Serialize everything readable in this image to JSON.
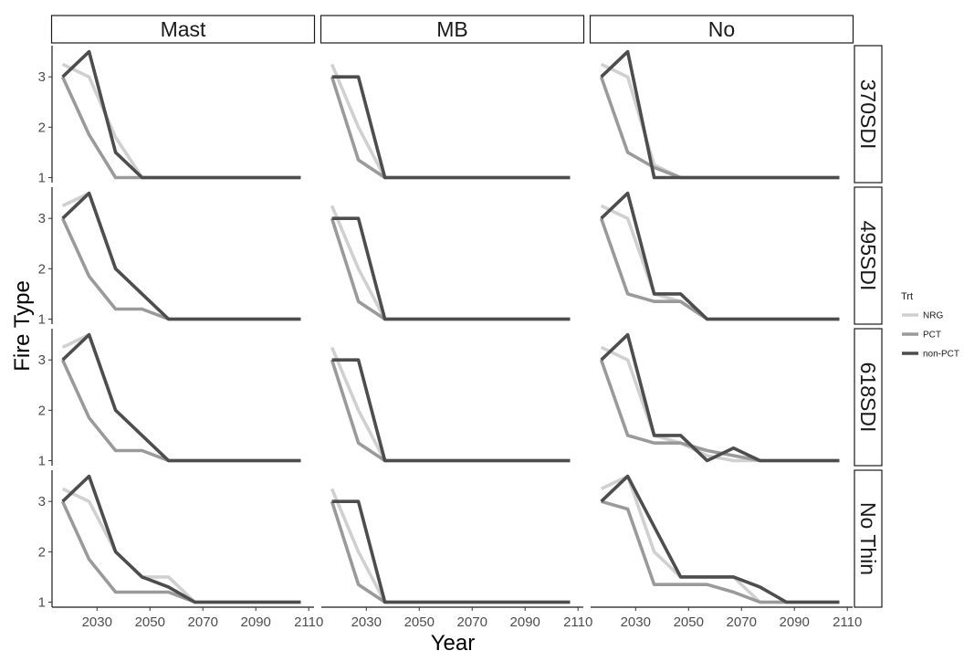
{
  "chart_data": {
    "type": "line",
    "xlabel": "Year",
    "ylabel": "Fire Type",
    "xlim": [
      2013,
      2112
    ],
    "ylim": [
      0.9,
      3.62
    ],
    "xticks": [
      2030,
      2050,
      2070,
      2090,
      2110
    ],
    "yticks": [
      1,
      2,
      3
    ],
    "x": [
      2017,
      2027,
      2037,
      2047,
      2057,
      2067,
      2077,
      2087,
      2097,
      2107
    ],
    "columns": [
      "Mast",
      "MB",
      "No"
    ],
    "rows": [
      "370SDI",
      "495SDI",
      "618SDI",
      "No Thin"
    ],
    "grid": false,
    "legend": {
      "title": "Trt",
      "position": "right",
      "entries": [
        {
          "name": "NRG",
          "color": "#d0d0d0"
        },
        {
          "name": "PCT",
          "color": "#9a9a9a"
        },
        {
          "name": "non-PCT",
          "color": "#4d4d4d"
        }
      ]
    },
    "panels": [
      {
        "column": "Mast",
        "row": "370SDI",
        "series": [
          {
            "name": "NRG",
            "values": [
              3.25,
              3.0,
              1.8,
              1.0,
              1,
              1,
              1,
              1,
              1,
              1
            ]
          },
          {
            "name": "PCT",
            "values": [
              3.0,
              1.85,
              1.0,
              1.0,
              1,
              1,
              1,
              1,
              1,
              1
            ]
          },
          {
            "name": "non-PCT",
            "values": [
              3.0,
              3.5,
              1.5,
              1.0,
              1,
              1,
              1,
              1,
              1,
              1
            ]
          }
        ]
      },
      {
        "column": "MB",
        "row": "370SDI",
        "series": [
          {
            "name": "NRG",
            "values": [
              3.25,
              2.0,
              1.0,
              1,
              1,
              1,
              1,
              1,
              1,
              1
            ]
          },
          {
            "name": "PCT",
            "values": [
              3.0,
              1.35,
              1.0,
              1,
              1,
              1,
              1,
              1,
              1,
              1
            ]
          },
          {
            "name": "non-PCT",
            "values": [
              3.0,
              3.0,
              1.0,
              1,
              1,
              1,
              1,
              1,
              1,
              1
            ]
          }
        ]
      },
      {
        "column": "No",
        "row": "370SDI",
        "series": [
          {
            "name": "NRG",
            "values": [
              3.25,
              3.0,
              1.25,
              1.0,
              1,
              1,
              1,
              1,
              1,
              1
            ]
          },
          {
            "name": "PCT",
            "values": [
              3.0,
              1.5,
              1.2,
              1.0,
              1,
              1,
              1,
              1,
              1,
              1
            ]
          },
          {
            "name": "non-PCT",
            "values": [
              3.0,
              3.5,
              1.0,
              1.0,
              1,
              1,
              1,
              1,
              1,
              1
            ]
          }
        ]
      },
      {
        "column": "Mast",
        "row": "495SDI",
        "series": [
          {
            "name": "NRG",
            "values": [
              3.25,
              3.5,
              2.0,
              1.5,
              1.0,
              1,
              1,
              1,
              1,
              1
            ]
          },
          {
            "name": "PCT",
            "values": [
              3.0,
              1.85,
              1.2,
              1.2,
              1.0,
              1,
              1,
              1,
              1,
              1
            ]
          },
          {
            "name": "non-PCT",
            "values": [
              3.0,
              3.5,
              2.0,
              1.5,
              1.0,
              1,
              1,
              1,
              1,
              1
            ]
          }
        ]
      },
      {
        "column": "MB",
        "row": "495SDI",
        "series": [
          {
            "name": "NRG",
            "values": [
              3.25,
              2.0,
              1.0,
              1,
              1,
              1,
              1,
              1,
              1,
              1
            ]
          },
          {
            "name": "PCT",
            "values": [
              3.0,
              1.35,
              1.0,
              1,
              1,
              1,
              1,
              1,
              1,
              1
            ]
          },
          {
            "name": "non-PCT",
            "values": [
              3.0,
              3.0,
              1.0,
              1,
              1,
              1,
              1,
              1,
              1,
              1
            ]
          }
        ]
      },
      {
        "column": "No",
        "row": "495SDI",
        "series": [
          {
            "name": "NRG",
            "values": [
              3.25,
              3.0,
              1.5,
              1.35,
              1.0,
              1,
              1,
              1,
              1,
              1
            ]
          },
          {
            "name": "PCT",
            "values": [
              3.0,
              1.5,
              1.35,
              1.35,
              1.0,
              1,
              1,
              1,
              1,
              1
            ]
          },
          {
            "name": "non-PCT",
            "values": [
              3.0,
              3.5,
              1.5,
              1.5,
              1.0,
              1,
              1,
              1,
              1,
              1
            ]
          }
        ]
      },
      {
        "column": "Mast",
        "row": "618SDI",
        "series": [
          {
            "name": "NRG",
            "values": [
              3.25,
              3.5,
              2.0,
              1.5,
              1.0,
              1,
              1,
              1,
              1,
              1
            ]
          },
          {
            "name": "PCT",
            "values": [
              3.0,
              1.85,
              1.2,
              1.2,
              1.0,
              1,
              1,
              1,
              1,
              1
            ]
          },
          {
            "name": "non-PCT",
            "values": [
              3.0,
              3.5,
              2.0,
              1.5,
              1.0,
              1,
              1,
              1,
              1,
              1
            ]
          }
        ]
      },
      {
        "column": "MB",
        "row": "618SDI",
        "series": [
          {
            "name": "NRG",
            "values": [
              3.25,
              2.0,
              1.0,
              1,
              1,
              1,
              1,
              1,
              1,
              1
            ]
          },
          {
            "name": "PCT",
            "values": [
              3.0,
              1.35,
              1.0,
              1,
              1,
              1,
              1,
              1,
              1,
              1
            ]
          },
          {
            "name": "non-PCT",
            "values": [
              3.0,
              3.0,
              1.0,
              1,
              1,
              1,
              1,
              1,
              1,
              1
            ]
          }
        ]
      },
      {
        "column": "No",
        "row": "618SDI",
        "series": [
          {
            "name": "NRG",
            "values": [
              3.25,
              3.0,
              1.5,
              1.35,
              1.1,
              1.0,
              1.0,
              1,
              1,
              1
            ]
          },
          {
            "name": "PCT",
            "values": [
              3.0,
              1.5,
              1.35,
              1.35,
              1.2,
              1.1,
              1.0,
              1,
              1,
              1
            ]
          },
          {
            "name": "non-PCT",
            "values": [
              3.0,
              3.5,
              1.5,
              1.5,
              1.0,
              1.25,
              1.0,
              1,
              1,
              1
            ]
          }
        ]
      },
      {
        "column": "Mast",
        "row": "No Thin",
        "series": [
          {
            "name": "NRG",
            "values": [
              3.25,
              3.0,
              2.0,
              1.5,
              1.5,
              1.0,
              1,
              1,
              1,
              1
            ]
          },
          {
            "name": "PCT",
            "values": [
              3.0,
              1.85,
              1.2,
              1.2,
              1.2,
              1.0,
              1,
              1,
              1,
              1
            ]
          },
          {
            "name": "non-PCT",
            "values": [
              3.0,
              3.5,
              2.0,
              1.5,
              1.3,
              1.0,
              1,
              1,
              1,
              1
            ]
          }
        ]
      },
      {
        "column": "MB",
        "row": "No Thin",
        "series": [
          {
            "name": "NRG",
            "values": [
              3.25,
              2.0,
              1.0,
              1,
              1,
              1,
              1,
              1,
              1,
              1
            ]
          },
          {
            "name": "PCT",
            "values": [
              3.0,
              1.35,
              1.0,
              1,
              1,
              1,
              1,
              1,
              1,
              1
            ]
          },
          {
            "name": "non-PCT",
            "values": [
              3.0,
              3.0,
              1.0,
              1,
              1,
              1,
              1,
              1,
              1,
              1
            ]
          }
        ]
      },
      {
        "column": "No",
        "row": "No Thin",
        "series": [
          {
            "name": "NRG",
            "values": [
              3.25,
              3.5,
              2.0,
              1.5,
              1.5,
              1.5,
              1.0,
              1.0,
              1,
              1
            ]
          },
          {
            "name": "PCT",
            "values": [
              3.0,
              2.85,
              1.35,
              1.35,
              1.35,
              1.2,
              1.0,
              1.0,
              1,
              1
            ]
          },
          {
            "name": "non-PCT",
            "values": [
              3.0,
              3.5,
              2.5,
              1.5,
              1.5,
              1.5,
              1.3,
              1.0,
              1.0,
              1.0
            ]
          }
        ]
      }
    ]
  }
}
